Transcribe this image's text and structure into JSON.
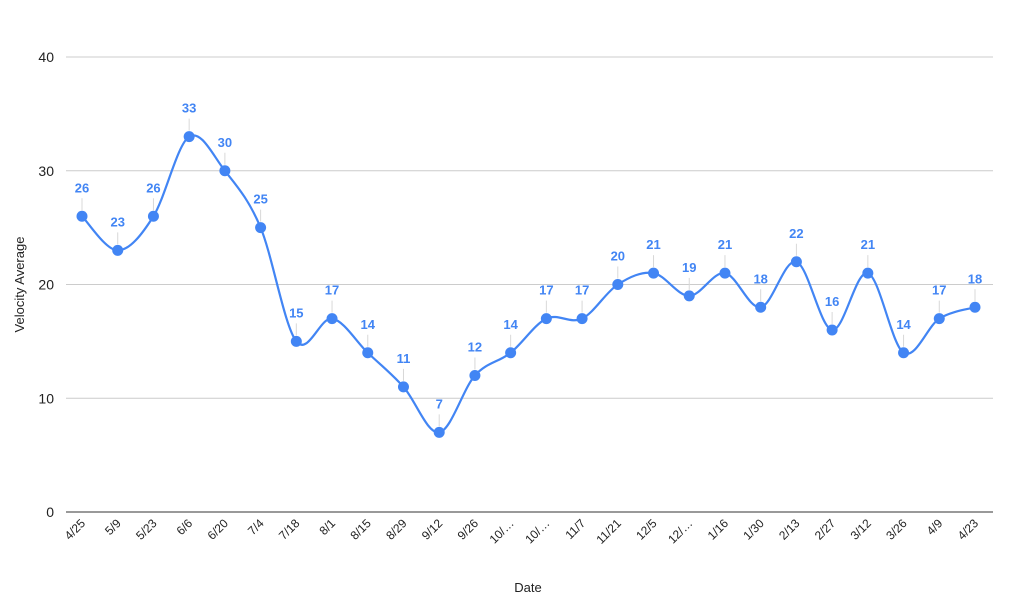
{
  "chart_data": {
    "type": "line",
    "title": "",
    "xlabel": "Date",
    "ylabel": "Velocity Average",
    "ylim": [
      0,
      40
    ],
    "yticks": [
      "0",
      "10",
      "20",
      "30",
      "40"
    ],
    "grid": true,
    "legend": "none",
    "smooth": true,
    "categories": [
      "4/25",
      "5/9",
      "5/23",
      "6/6",
      "6/20",
      "7/4",
      "7/18",
      "8/1",
      "8/15",
      "8/29",
      "9/12",
      "9/26",
      "10/…",
      "10/…",
      "11/7",
      "11/21",
      "12/5",
      "12/…",
      "1/16",
      "1/30",
      "2/13",
      "2/27",
      "3/12",
      "3/26",
      "4/9",
      "4/23"
    ],
    "series": [
      {
        "color": "#4285f4",
        "values": [
          26,
          23,
          26,
          33,
          30,
          25,
          15,
          17,
          14,
          11,
          7,
          12,
          14,
          17,
          17,
          20,
          21,
          19,
          21,
          18,
          22,
          16,
          21,
          14,
          17,
          18
        ],
        "labels": [
          "26",
          "23",
          "26",
          "33",
          "30",
          "25",
          "15",
          "17",
          "14",
          "11",
          "7",
          "12",
          "14",
          "17",
          "17",
          "20",
          "21",
          "19",
          "21",
          "18",
          "22",
          "16",
          "21",
          "14",
          "17",
          "18"
        ]
      }
    ]
  }
}
